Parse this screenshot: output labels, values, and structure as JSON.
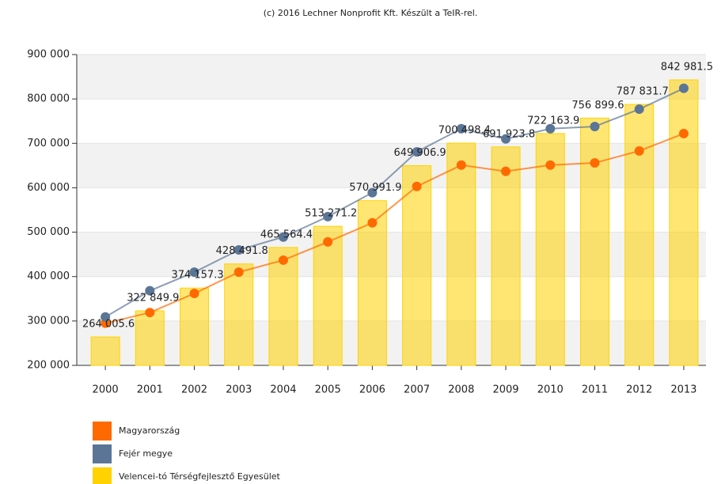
{
  "chart_data": {
    "type": "bar_line",
    "title": "(c) 2016 Lechner Nonprofit Kft. Készült a TeIR-rel.",
    "categories": [
      "2000",
      "2001",
      "2002",
      "2003",
      "2004",
      "2005",
      "2006",
      "2007",
      "2008",
      "2009",
      "2010",
      "2011",
      "2012",
      "2013"
    ],
    "series": [
      {
        "name": "Magyarország",
        "type": "line",
        "color": "#ff6a00",
        "values": [
          295000,
          319000,
          362000,
          410000,
          437000,
          478000,
          521000,
          603000,
          651000,
          637000,
          651000,
          656000,
          683000,
          722000
        ]
      },
      {
        "name": "Fejér megye",
        "type": "line",
        "color": "#5b7596",
        "values": [
          309000,
          368000,
          410000,
          460000,
          489000,
          535000,
          589000,
          681000,
          733000,
          710000,
          733000,
          738000,
          777000,
          824000
        ]
      },
      {
        "name": "Velencei-tó Térségfejlesztő Egyesület",
        "type": "bar",
        "color": "#ffd200",
        "values": [
          264005.6,
          322849.9,
          374157.3,
          428491.8,
          465564.4,
          513271.2,
          570991.9,
          649906.9,
          700498.4,
          691923.8,
          722163.9,
          756899.6,
          787831.7,
          842981.5
        ],
        "value_labels": [
          "264 005.6",
          "322 849.9",
          "374 157.3",
          "428 491.8",
          "465 564.4",
          "513 271.2",
          "570 991.9",
          "649 906.9",
          "700 498.4",
          "691 923.8",
          "722 163.9",
          "756 899.6",
          "787 831.7",
          "842 981.5"
        ]
      }
    ],
    "ylim": [
      200000,
      900000
    ],
    "yticks": [
      {
        "value": 200000,
        "label": "200 000"
      },
      {
        "value": 300000,
        "label": "300 000"
      },
      {
        "value": 400000,
        "label": "400 000"
      },
      {
        "value": 500000,
        "label": "500 000"
      },
      {
        "value": 600000,
        "label": "600 000"
      },
      {
        "value": 700000,
        "label": "700 000"
      },
      {
        "value": 800000,
        "label": "800 000"
      },
      {
        "value": 900000,
        "label": "900 000"
      }
    ],
    "grid": true,
    "legend": "bottom-left"
  }
}
